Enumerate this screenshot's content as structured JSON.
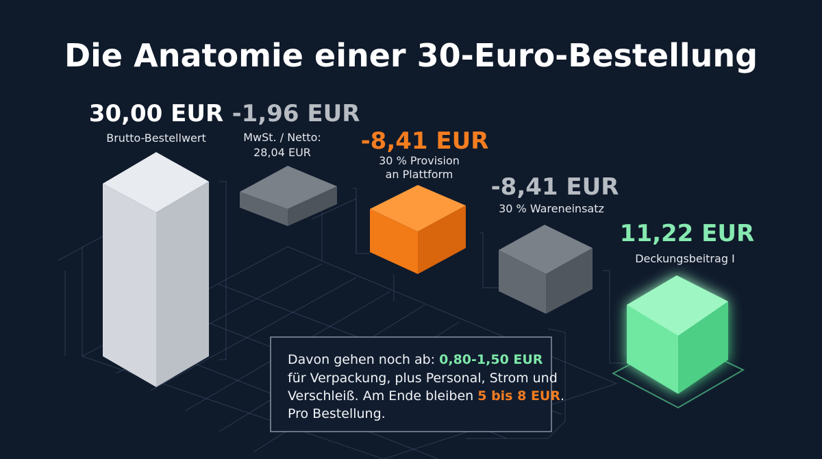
{
  "title": "Die Anatomie einer 30-Euro-Bestellung",
  "items": [
    {
      "amount": "30,00 EUR",
      "label": [
        "Brutto-Bestellwert"
      ]
    },
    {
      "amount": "-1,96 EUR",
      "label": [
        "MwSt. / Netto:",
        "28,04 EUR"
      ]
    },
    {
      "amount": "-8,41 EUR",
      "label": [
        "30 % Provision",
        "an Plattform"
      ]
    },
    {
      "amount": "-8,41 EUR",
      "label": [
        "30 % Wareneinsatz"
      ]
    },
    {
      "amount": "11,22 EUR",
      "label": [
        "Deckungsbeitrag I"
      ]
    }
  ],
  "note": {
    "lines": [
      [
        "Davon gehen noch ab: ",
        "0,80-1,50 EUR"
      ],
      [
        "für Verpackung, plus Personal, Strom und"
      ],
      [
        "Verschleiß. Am Ende bleiben ",
        "5 bis 8 EUR",
        "."
      ],
      [
        "Pro Bestellung."
      ]
    ]
  }
}
